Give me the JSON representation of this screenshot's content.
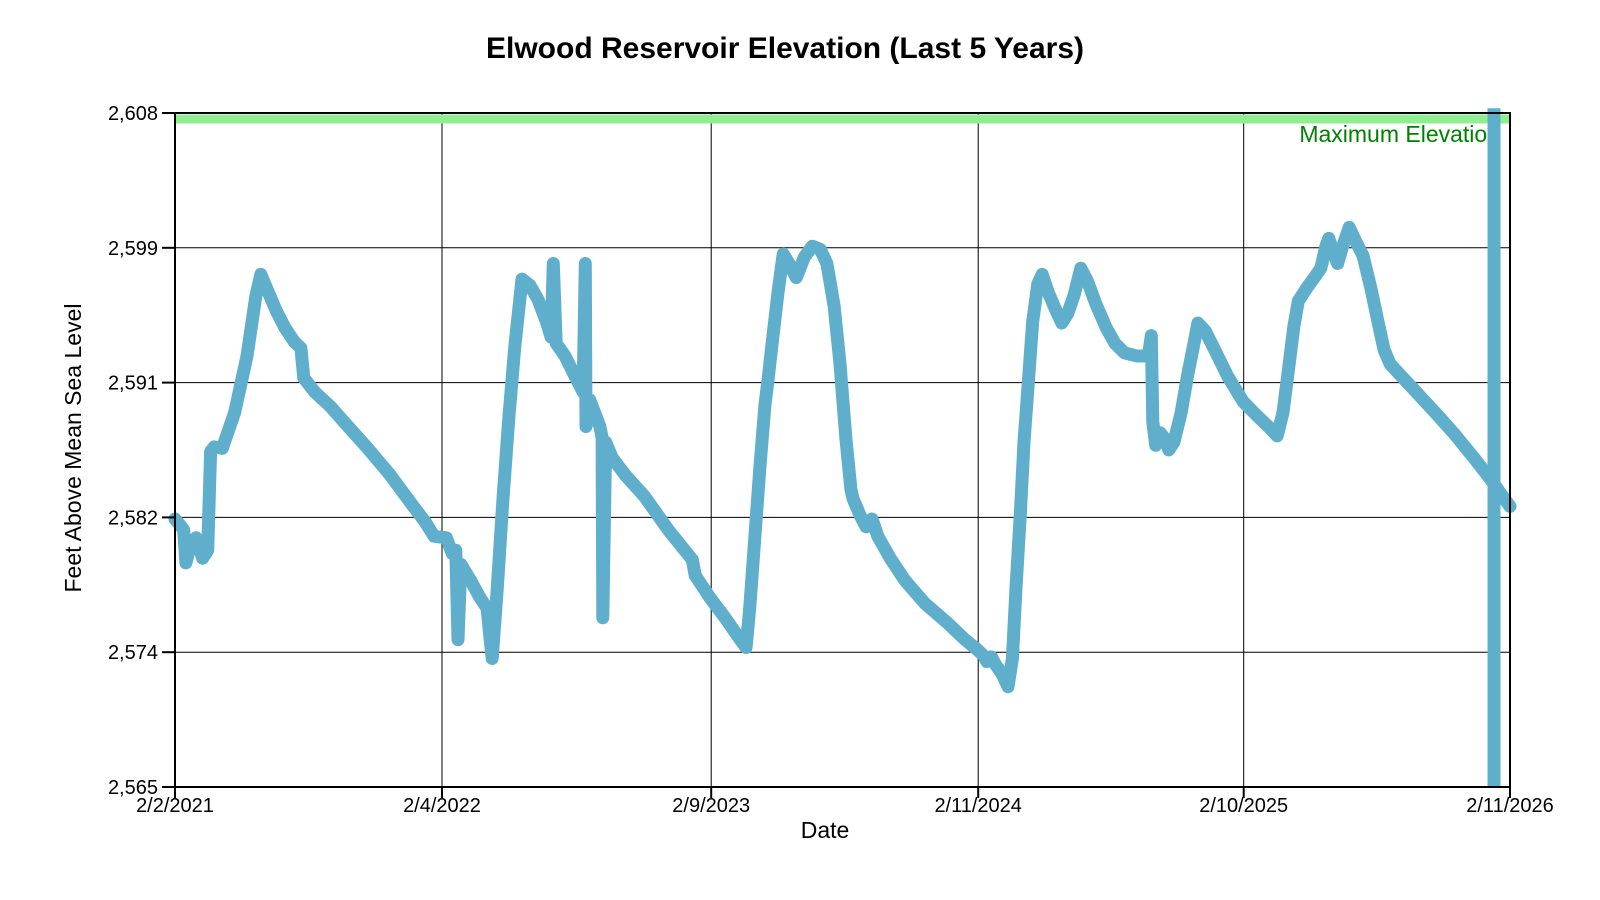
{
  "chart": {
    "title": "Elwood Reservoir Elevation (Last 5 Years)",
    "xlabel": "Date",
    "ylabel": "Feet Above Mean Sea Level"
  },
  "colors": {
    "series_line": "#5FAFCC",
    "max_elevation_band": "#90EE90",
    "max_elevation_text": "#008000",
    "grid": "#000000",
    "text": "#000000",
    "background": "#FFFFFF"
  },
  "chart_data": {
    "type": "line",
    "title": "Elwood Reservoir Elevation (Last 5 Years)",
    "xlabel": "Date",
    "ylabel": "Feet Above Mean Sea Level",
    "grid": true,
    "legend": "none",
    "x_axis": {
      "start_date": "2021-02-02",
      "end_date": "2026-02-11",
      "ticks": [
        {
          "label": "2/2/2021",
          "date": "2021-02-02"
        },
        {
          "label": "2/4/2022",
          "date": "2022-02-04"
        },
        {
          "label": "2/9/2023",
          "date": "2023-02-09"
        },
        {
          "label": "2/11/2024",
          "date": "2024-02-11"
        },
        {
          "label": "2/10/2025",
          "date": "2025-02-10"
        },
        {
          "label": "2/11/2026",
          "date": "2026-02-11"
        }
      ]
    },
    "y_axis": {
      "min": 2565,
      "max": 2608,
      "tick_values": [
        2565,
        2573.6,
        2582.2,
        2590.8,
        2599.4,
        2608
      ],
      "tick_labels": [
        "2,565",
        "2,574",
        "2,582",
        "2,591",
        "2,599",
        "2,608"
      ]
    },
    "annotations": {
      "max_elevation_line": {
        "label": "Maximum Elevation",
        "value": 2608,
        "style": "horizontal_band"
      },
      "vertical_spike": {
        "date": "2026-01-20",
        "from": 2565,
        "to": 2608.3
      }
    },
    "series": [
      {
        "name": "reservoir-elevation",
        "points": [
          [
            "2021-02-02",
            2582.1
          ],
          [
            "2021-02-09",
            2581.7
          ],
          [
            "2021-02-14",
            2581.4
          ],
          [
            "2021-02-17",
            2579.3
          ],
          [
            "2021-02-24",
            2580.6
          ],
          [
            "2021-03-03",
            2580.9
          ],
          [
            "2021-03-12",
            2579.6
          ],
          [
            "2021-03-19",
            2580.1
          ],
          [
            "2021-03-23",
            2586.4
          ],
          [
            "2021-03-28",
            2586.7
          ],
          [
            "2021-04-08",
            2586.6
          ],
          [
            "2021-04-25",
            2588.9
          ],
          [
            "2021-05-12",
            2592.5
          ],
          [
            "2021-05-24",
            2596.3
          ],
          [
            "2021-05-31",
            2597.7
          ],
          [
            "2021-06-10",
            2596.6
          ],
          [
            "2021-06-21",
            2595.4
          ],
          [
            "2021-07-03",
            2594.3
          ],
          [
            "2021-07-16",
            2593.4
          ],
          [
            "2021-07-25",
            2593.0
          ],
          [
            "2021-07-29",
            2591.1
          ],
          [
            "2021-08-13",
            2590.2
          ],
          [
            "2021-09-03",
            2589.3
          ],
          [
            "2021-09-28",
            2588.0
          ],
          [
            "2021-10-25",
            2586.6
          ],
          [
            "2021-11-25",
            2584.9
          ],
          [
            "2021-12-25",
            2583.0
          ],
          [
            "2022-01-12",
            2581.9
          ],
          [
            "2022-01-24",
            2581.0
          ],
          [
            "2022-02-10",
            2580.9
          ],
          [
            "2022-02-18",
            2579.9
          ],
          [
            "2022-02-23",
            2580.1
          ],
          [
            "2022-02-26",
            2574.4
          ],
          [
            "2022-03-02",
            2579.2
          ],
          [
            "2022-03-15",
            2578.2
          ],
          [
            "2022-03-28",
            2577.1
          ],
          [
            "2022-04-07",
            2576.4
          ],
          [
            "2022-04-11",
            2574.5
          ],
          [
            "2022-04-14",
            2573.2
          ],
          [
            "2022-04-21",
            2577.7
          ],
          [
            "2022-04-29",
            2583.5
          ],
          [
            "2022-05-07",
            2588.6
          ],
          [
            "2022-05-15",
            2593.1
          ],
          [
            "2022-05-25",
            2597.4
          ],
          [
            "2022-06-05",
            2597.0
          ],
          [
            "2022-06-16",
            2596.1
          ],
          [
            "2022-06-28",
            2594.6
          ],
          [
            "2022-07-04",
            2593.7
          ],
          [
            "2022-07-07",
            2598.4
          ],
          [
            "2022-07-11",
            2593.3
          ],
          [
            "2022-07-23",
            2592.5
          ],
          [
            "2022-08-06",
            2591.2
          ],
          [
            "2022-08-17",
            2590.2
          ],
          [
            "2022-08-20",
            2598.4
          ],
          [
            "2022-08-21",
            2588.0
          ],
          [
            "2022-08-26",
            2589.7
          ],
          [
            "2022-09-09",
            2588.0
          ],
          [
            "2022-09-12",
            2587.3
          ],
          [
            "2022-09-13",
            2575.8
          ],
          [
            "2022-09-17",
            2587.0
          ],
          [
            "2022-09-26",
            2586.0
          ],
          [
            "2022-10-14",
            2584.9
          ],
          [
            "2022-11-10",
            2583.5
          ],
          [
            "2022-12-12",
            2581.4
          ],
          [
            "2023-01-14",
            2579.5
          ],
          [
            "2023-01-18",
            2578.5
          ],
          [
            "2023-02-07",
            2577.1
          ],
          [
            "2023-02-28",
            2575.8
          ],
          [
            "2023-03-21",
            2574.4
          ],
          [
            "2023-03-29",
            2573.9
          ],
          [
            "2023-04-03",
            2576.4
          ],
          [
            "2023-04-10",
            2580.9
          ],
          [
            "2023-04-17",
            2585.4
          ],
          [
            "2023-04-24",
            2589.4
          ],
          [
            "2023-04-28",
            2590.9
          ],
          [
            "2023-05-05",
            2593.8
          ],
          [
            "2023-05-12",
            2596.6
          ],
          [
            "2023-05-19",
            2599.0
          ],
          [
            "2023-05-27",
            2598.4
          ],
          [
            "2023-06-06",
            2597.5
          ],
          [
            "2023-06-17",
            2598.8
          ],
          [
            "2023-06-28",
            2599.5
          ],
          [
            "2023-07-09",
            2599.3
          ],
          [
            "2023-07-18",
            2598.4
          ],
          [
            "2023-07-28",
            2595.7
          ],
          [
            "2023-08-05",
            2592.0
          ],
          [
            "2023-08-13",
            2587.3
          ],
          [
            "2023-08-20",
            2584.0
          ],
          [
            "2023-08-23",
            2583.4
          ],
          [
            "2023-09-02",
            2582.3
          ],
          [
            "2023-09-10",
            2581.6
          ],
          [
            "2023-09-18",
            2582.1
          ],
          [
            "2023-09-26",
            2581.0
          ],
          [
            "2023-10-13",
            2579.6
          ],
          [
            "2023-11-02",
            2578.2
          ],
          [
            "2023-11-30",
            2576.7
          ],
          [
            "2023-12-30",
            2575.5
          ],
          [
            "2024-01-24",
            2574.4
          ],
          [
            "2024-02-09",
            2573.8
          ],
          [
            "2024-02-18",
            2573.4
          ],
          [
            "2024-02-23",
            2573.0
          ],
          [
            "2024-02-29",
            2573.3
          ],
          [
            "2024-03-06",
            2572.8
          ],
          [
            "2024-03-15",
            2572.2
          ],
          [
            "2024-03-23",
            2571.4
          ],
          [
            "2024-03-29",
            2573.2
          ],
          [
            "2024-04-03",
            2577.7
          ],
          [
            "2024-04-09",
            2582.5
          ],
          [
            "2024-04-14",
            2587.0
          ],
          [
            "2024-04-20",
            2590.9
          ],
          [
            "2024-04-26",
            2594.7
          ],
          [
            "2024-05-03",
            2597.1
          ],
          [
            "2024-05-09",
            2597.7
          ],
          [
            "2024-05-17",
            2596.6
          ],
          [
            "2024-05-27",
            2595.5
          ],
          [
            "2024-06-05",
            2594.6
          ],
          [
            "2024-06-13",
            2595.2
          ],
          [
            "2024-06-22",
            2596.4
          ],
          [
            "2024-07-01",
            2598.1
          ],
          [
            "2024-07-10",
            2597.3
          ],
          [
            "2024-07-22",
            2595.8
          ],
          [
            "2024-08-05",
            2594.3
          ],
          [
            "2024-08-17",
            2593.3
          ],
          [
            "2024-08-30",
            2592.7
          ],
          [
            "2024-09-16",
            2592.5
          ],
          [
            "2024-10-02",
            2592.5
          ],
          [
            "2024-10-06",
            2593.8
          ],
          [
            "2024-10-08",
            2588.3
          ],
          [
            "2024-10-12",
            2586.8
          ],
          [
            "2024-10-18",
            2587.6
          ],
          [
            "2024-10-25",
            2587.2
          ],
          [
            "2024-10-30",
            2586.5
          ],
          [
            "2024-11-06",
            2587.0
          ],
          [
            "2024-11-16",
            2588.9
          ],
          [
            "2024-11-25",
            2591.3
          ],
          [
            "2024-12-04",
            2593.4
          ],
          [
            "2024-12-09",
            2594.6
          ],
          [
            "2024-12-19",
            2594.1
          ],
          [
            "2025-01-02",
            2592.8
          ],
          [
            "2025-01-19",
            2591.2
          ],
          [
            "2025-02-09",
            2589.6
          ],
          [
            "2025-02-28",
            2588.7
          ],
          [
            "2025-03-18",
            2587.9
          ],
          [
            "2025-03-28",
            2587.4
          ],
          [
            "2025-04-05",
            2588.9
          ],
          [
            "2025-04-13",
            2591.8
          ],
          [
            "2025-04-20",
            2594.4
          ],
          [
            "2025-04-26",
            2596.0
          ],
          [
            "2025-05-07",
            2596.8
          ],
          [
            "2025-05-18",
            2597.5
          ],
          [
            "2025-05-27",
            2598.1
          ],
          [
            "2025-06-03",
            2599.5
          ],
          [
            "2025-06-07",
            2600.0
          ],
          [
            "2025-06-14",
            2599.0
          ],
          [
            "2025-06-19",
            2598.4
          ],
          [
            "2025-06-26",
            2599.5
          ],
          [
            "2025-07-05",
            2600.7
          ],
          [
            "2025-07-14",
            2599.8
          ],
          [
            "2025-07-24",
            2598.9
          ],
          [
            "2025-08-04",
            2596.8
          ],
          [
            "2025-08-13",
            2594.8
          ],
          [
            "2025-08-22",
            2592.9
          ],
          [
            "2025-08-30",
            2592.0
          ],
          [
            "2025-09-13",
            2591.3
          ],
          [
            "2025-10-03",
            2590.3
          ],
          [
            "2025-10-31",
            2588.9
          ],
          [
            "2025-11-27",
            2587.5
          ],
          [
            "2025-12-25",
            2585.9
          ],
          [
            "2026-01-19",
            2584.4
          ],
          [
            "2026-01-31",
            2583.6
          ],
          [
            "2026-02-11",
            2582.9
          ]
        ]
      }
    ]
  }
}
